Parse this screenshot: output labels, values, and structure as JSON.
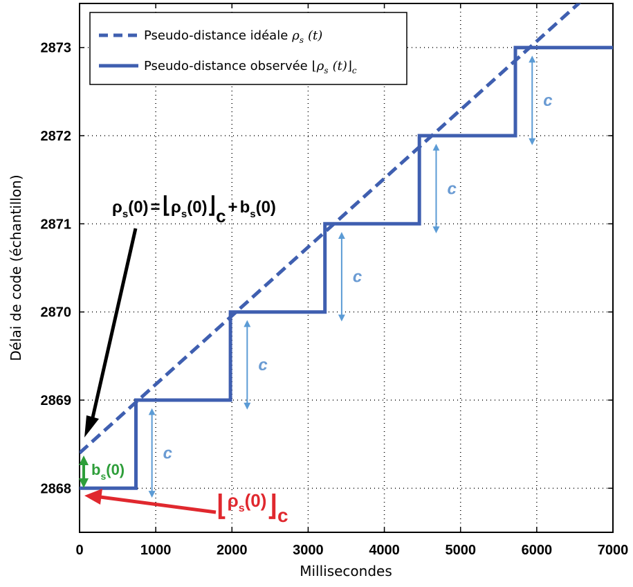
{
  "chart_data": {
    "type": "line",
    "xlabel": "Millisecondes",
    "ylabel": "Délai de code (échantillon)",
    "xlim": [
      0,
      7000
    ],
    "ylim": [
      2867.5,
      2873.5
    ],
    "xticks": [
      "0",
      "1000",
      "2000",
      "3000",
      "4000",
      "5000",
      "6000",
      "7000"
    ],
    "yticks": [
      "2868",
      "2869",
      "2870",
      "2871",
      "2872",
      "2873"
    ],
    "grid": true,
    "legend_position": "top-left",
    "series": [
      {
        "name": "Pseudo-distance idéale ρs (t)",
        "style": "dashed",
        "color": "#3f5fb0",
        "x": [
          0,
          7000
        ],
        "y": [
          2868.4,
          2873.85
        ]
      },
      {
        "name": "Pseudo-distance observée ⌊ρs (t)⌋c",
        "style": "solid",
        "color": "#3f5fb0",
        "x": [
          0,
          740,
          740,
          1980,
          1980,
          3220,
          3220,
          4460,
          4460,
          5720,
          5720,
          7000
        ],
        "y": [
          2868,
          2868,
          2869,
          2869,
          2870,
          2870,
          2871,
          2871,
          2872,
          2872,
          2873,
          2873
        ]
      }
    ],
    "c_arrows": [
      {
        "x": 950,
        "y0": 2867.9,
        "y1": 2868.9,
        "label": "c"
      },
      {
        "x": 2200,
        "y0": 2868.9,
        "y1": 2869.9,
        "label": "c"
      },
      {
        "x": 3440,
        "y0": 2869.9,
        "y1": 2870.9,
        "label": "c"
      },
      {
        "x": 4680,
        "y0": 2870.9,
        "y1": 2871.9,
        "label": "c"
      },
      {
        "x": 5940,
        "y0": 2871.9,
        "y1": 2872.9,
        "label": "c"
      }
    ],
    "annotations": {
      "equation": {
        "rho": "ρ",
        "s": "s",
        "zero": "(0)",
        "eq": "=",
        "lfloor": "⌊",
        "rfloor": "⌋",
        "c": "c",
        "plus": "+",
        "b": "b"
      },
      "bs0": {
        "b": "b",
        "s": "s",
        "zero": "(0)"
      },
      "red_floor": {
        "lfloor": "⌊",
        "rho": "ρ",
        "s": "s",
        "zero": "(0)",
        "rfloor": "⌋",
        "c": "c"
      }
    },
    "colors": {
      "line": "#3f5fb0",
      "c_arrow": "#5b9bd5",
      "black_arrow": "#000000",
      "green": "#2e9e3a",
      "red": "#e0282e"
    }
  },
  "legend": {
    "ideal_label": "Pseudo-distance idéale",
    "ideal_rho": "ρ",
    "ideal_sub": "s",
    "ideal_arg": "(t)",
    "observed_label": "Pseudo-distance observée",
    "observed_lfloor": "⌊",
    "observed_rho": "ρ",
    "observed_sub": "s",
    "observed_arg": "(t)",
    "observed_rfloor": "⌋",
    "observed_c": "c"
  }
}
